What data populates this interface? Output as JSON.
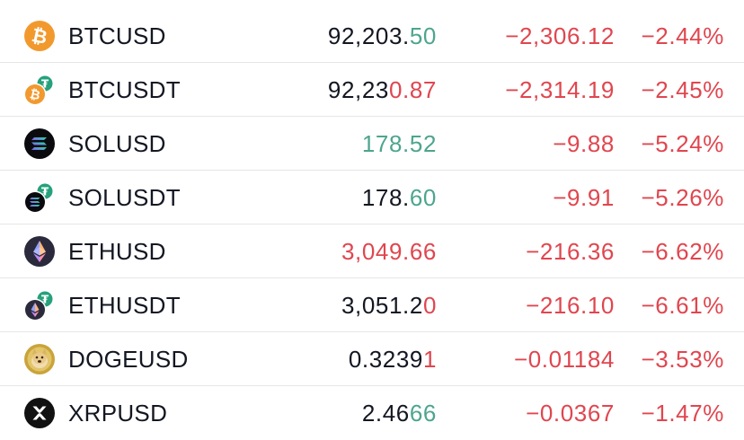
{
  "colors": {
    "neutral": "#131722",
    "up": "#4da58e",
    "down": "#e0464f",
    "btc": "#f2992e",
    "tether_badge": "#26a17b",
    "doge": "#c9a43b"
  },
  "rows": [
    {
      "symbol": "BTCUSD",
      "icon": "bitcoin-icon",
      "price_main": "92,203.",
      "price_tail": "50",
      "tail_dir": "up",
      "main_dir": "neutral",
      "change": "−2,306.12",
      "pct": "−2.44%"
    },
    {
      "symbol": "BTCUSDT",
      "icon": "bitcoin-tether-icon",
      "price_main": "92,23",
      "price_tail": "0.87",
      "tail_dir": "down",
      "main_dir": "neutral",
      "change": "−2,314.19",
      "pct": "−2.45%"
    },
    {
      "symbol": "SOLUSD",
      "icon": "solana-icon",
      "price_main": "178.52",
      "price_tail": "",
      "tail_dir": "up",
      "main_dir": "up",
      "change": "−9.88",
      "pct": "−5.24%"
    },
    {
      "symbol": "SOLUSDT",
      "icon": "solana-tether-icon",
      "price_main": "178.",
      "price_tail": "60",
      "tail_dir": "up",
      "main_dir": "neutral",
      "change": "−9.91",
      "pct": "−5.26%"
    },
    {
      "symbol": "ETHUSD",
      "icon": "ethereum-icon",
      "price_main": "3,049.66",
      "price_tail": "",
      "tail_dir": "down",
      "main_dir": "down",
      "change": "−216.36",
      "pct": "−6.62%"
    },
    {
      "symbol": "ETHUSDT",
      "icon": "ethereum-tether-icon",
      "price_main": "3,051.2",
      "price_tail": "0",
      "tail_dir": "down",
      "main_dir": "neutral",
      "change": "−216.10",
      "pct": "−6.61%"
    },
    {
      "symbol": "DOGEUSD",
      "icon": "dogecoin-icon",
      "price_main": "0.3239",
      "price_tail": "1",
      "tail_dir": "down",
      "main_dir": "neutral",
      "change": "−0.01184",
      "pct": "−3.53%"
    },
    {
      "symbol": "XRPUSD",
      "icon": "xrp-icon",
      "price_main": "2.46",
      "price_tail": "66",
      "tail_dir": "up",
      "main_dir": "neutral",
      "change": "−0.0367",
      "pct": "−1.47%"
    }
  ]
}
